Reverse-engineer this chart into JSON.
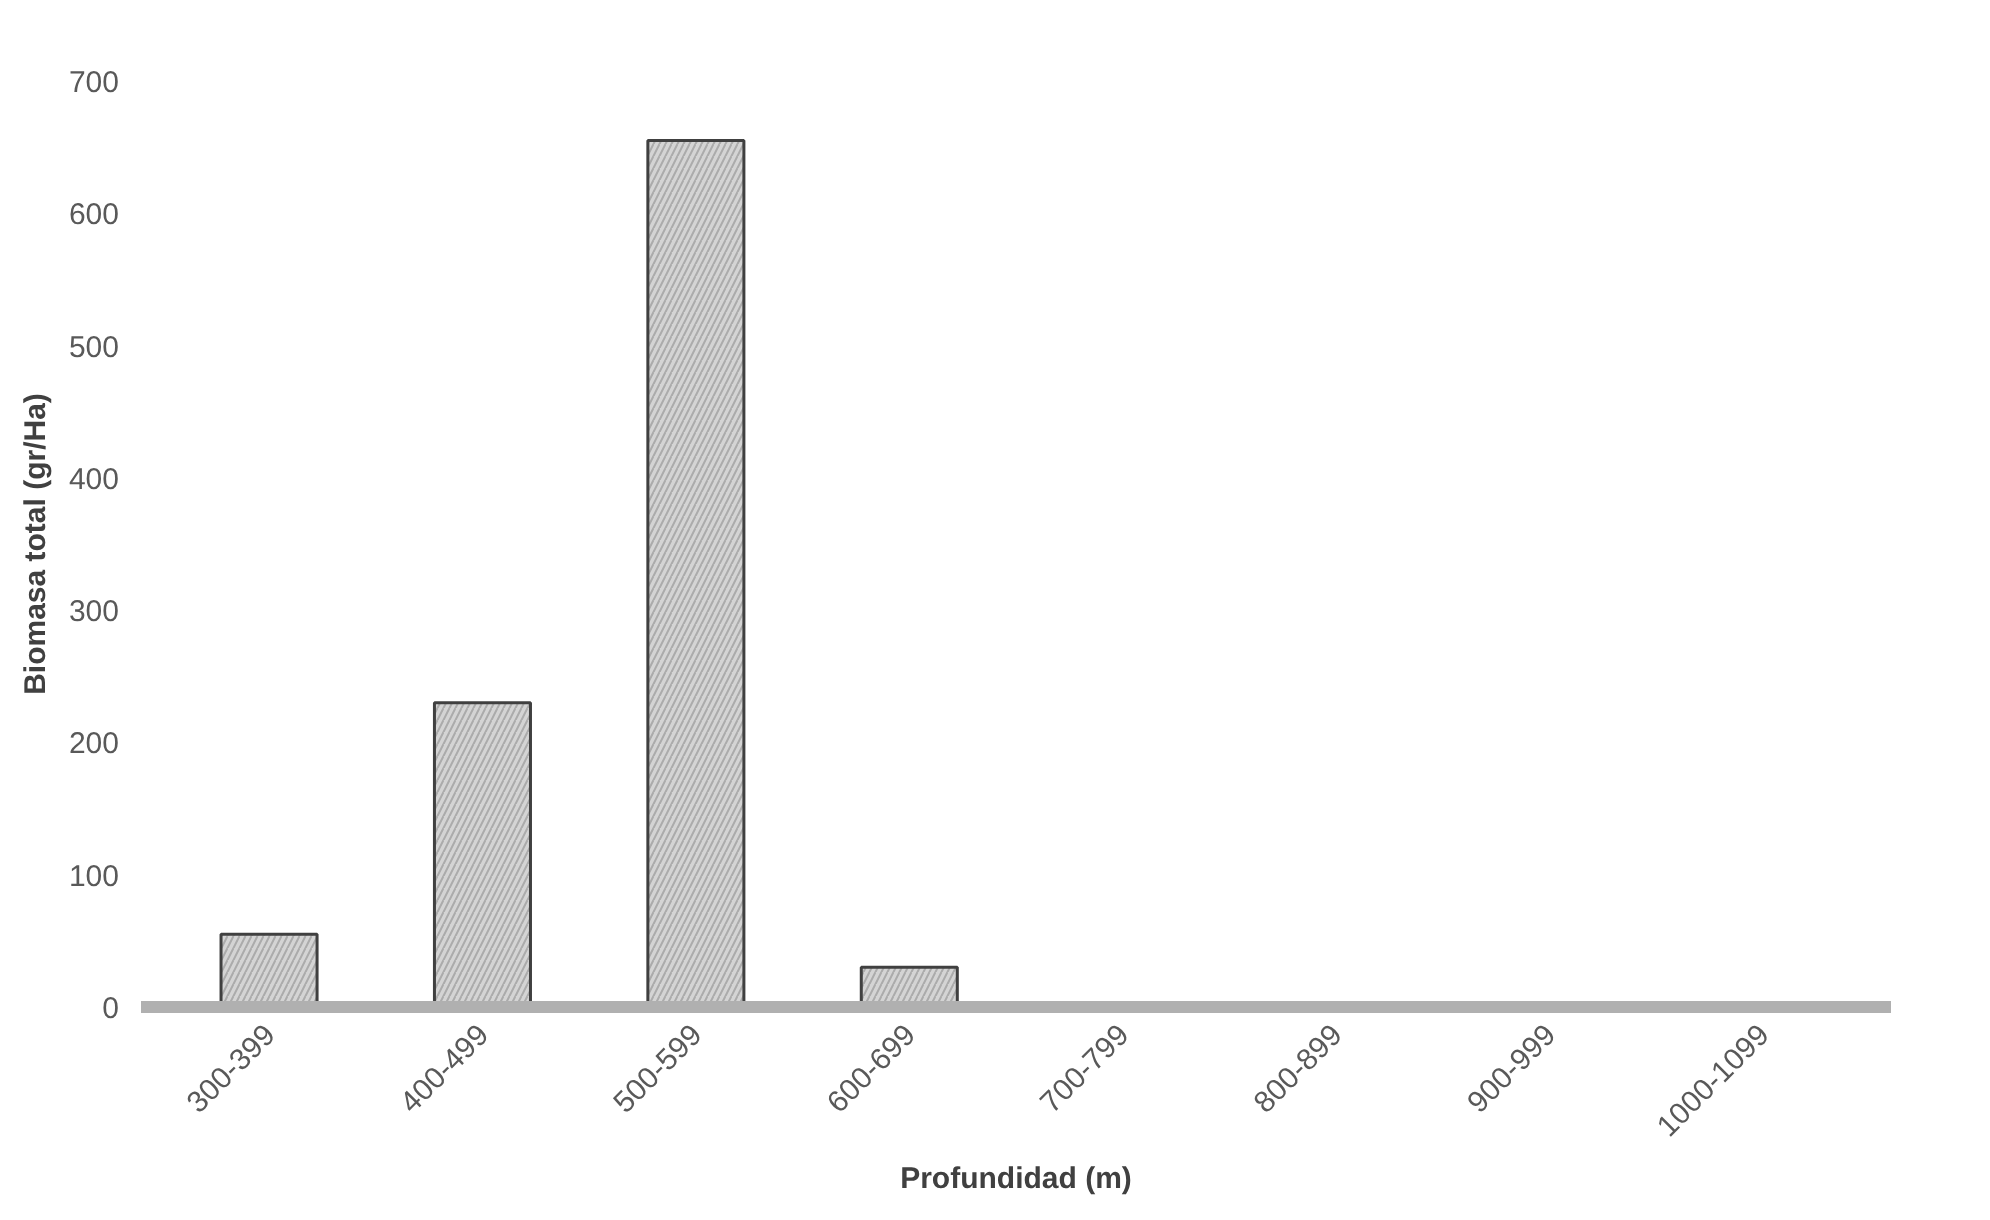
{
  "chart_data": {
    "type": "bar",
    "xlabel": "Profundidad (m)",
    "ylabel": "Biomasa total (gr/Ha)",
    "categories": [
      "300-399",
      "400-499",
      "500-599",
      "600-699",
      "700-799",
      "800-899",
      "900-999",
      "1000-1099"
    ],
    "values": [
      55,
      230,
      655,
      30,
      0,
      0,
      0,
      0
    ],
    "color": "#d4d4d4",
    "ylim": [
      0,
      700
    ],
    "yticks": [
      0,
      100,
      200,
      300,
      400,
      500,
      600,
      700
    ],
    "grid": false
  }
}
